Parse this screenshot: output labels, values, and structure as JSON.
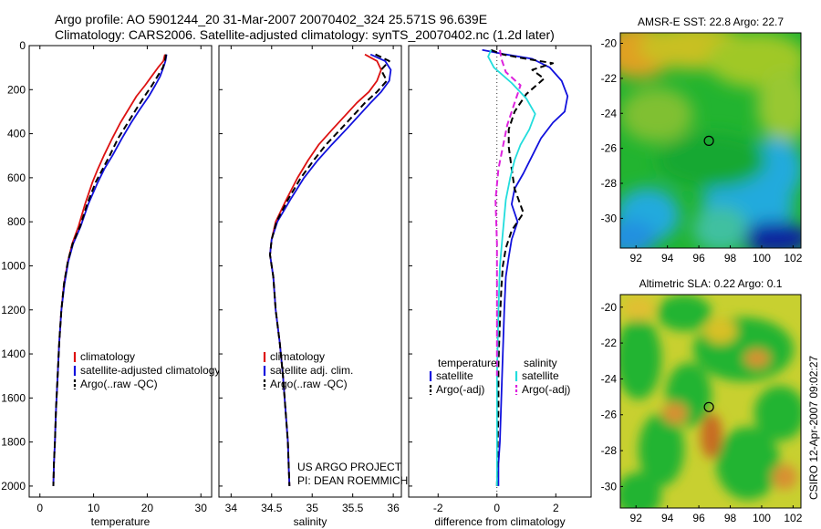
{
  "header": {
    "line1": "Argo profile: AO 5901244_20 31-Mar-2007 20070402_324 25.571S 96.639E",
    "line2": "Climatology: CARS2006. Satellite-adjusted climatology: synTS_20070402.nc (1.2d later)"
  },
  "side_label": "CSIRO 12-Apr-2007 09:02:27",
  "colors": {
    "climatology": "#dd1111",
    "satellite": "#1111dd",
    "argo": "#000000",
    "sal_satellite": "#22dddd",
    "sal_argo": "#dd22dd",
    "map_warm": "#d4b020",
    "map_mid": "#22b430",
    "map_cool": "#22aadd",
    "map_cold": "#1020a0"
  },
  "chart_data": [
    {
      "type": "line",
      "xlabel": "temperature",
      "ylabel": "",
      "xlim": [
        -2,
        32
      ],
      "ylim": [
        2050,
        0
      ],
      "xticks": [
        0,
        10,
        20,
        30
      ],
      "yticks": [
        0,
        200,
        400,
        600,
        800,
        1000,
        1200,
        1400,
        1600,
        1800,
        2000
      ],
      "legend": {
        "placement": "lower-right",
        "entries": [
          "climatology",
          "satellite-adjusted climatology",
          "Argo(..raw -QC)"
        ]
      },
      "series": [
        {
          "name": "climatology",
          "color": "#dd1111",
          "dash": "solid",
          "x": [
            23.3,
            23.0,
            22.0,
            20.8,
            19.6,
            18.0,
            16.5,
            15.0,
            13.5,
            11.9,
            10.8,
            9.8,
            8.4,
            7.2,
            6.0,
            5.2,
            4.5,
            4.0,
            3.6,
            3.3,
            3.0,
            2.8,
            2.6,
            2.5
          ],
          "y": [
            40,
            70,
            100,
            140,
            180,
            230,
            290,
            350,
            420,
            500,
            560,
            620,
            720,
            820,
            900,
            980,
            1080,
            1200,
            1350,
            1500,
            1650,
            1800,
            1900,
            2000
          ]
        },
        {
          "name": "satellite-adjusted climatology",
          "color": "#1111dd",
          "dash": "solid",
          "x": [
            23.6,
            23.4,
            23.0,
            22.4,
            21.5,
            20.3,
            18.6,
            17.0,
            15.3,
            13.5,
            12.0,
            10.8,
            9.0,
            7.6,
            6.2,
            5.3,
            4.6,
            4.0,
            3.6,
            3.3,
            3.0,
            2.8,
            2.6,
            2.5
          ],
          "y": [
            40,
            70,
            100,
            140,
            180,
            230,
            290,
            350,
            420,
            500,
            560,
            620,
            720,
            820,
            900,
            980,
            1080,
            1200,
            1350,
            1500,
            1650,
            1800,
            1900,
            2000
          ]
        },
        {
          "name": "Argo(..raw -QC)",
          "color": "#000000",
          "dash": "dashed",
          "x": [
            23.5,
            23.3,
            22.9,
            21.9,
            20.9,
            19.5,
            17.9,
            16.4,
            14.6,
            13.0,
            11.7,
            10.4,
            8.8,
            7.5,
            6.1,
            5.2,
            4.5,
            4.0,
            3.6,
            3.3,
            3.0,
            2.8,
            2.6,
            2.5
          ],
          "y": [
            40,
            70,
            100,
            140,
            180,
            230,
            290,
            350,
            420,
            500,
            560,
            620,
            720,
            820,
            900,
            980,
            1080,
            1200,
            1350,
            1500,
            1650,
            1800,
            1900,
            2000
          ]
        }
      ]
    },
    {
      "type": "line",
      "xlabel": "salinity",
      "xlim": [
        33.85,
        36.1
      ],
      "ylim": [
        2050,
        0
      ],
      "xticks": [
        34,
        34.5,
        35,
        35.5,
        36
      ],
      "legend": {
        "placement": "lower-right",
        "entries": [
          "climatology",
          "satellite adj. clim.",
          "Argo(..raw -QC)"
        ]
      },
      "annotations": [
        "US ARGO PROJECT",
        "PI: DEAN ROEMMICH"
      ],
      "series": [
        {
          "name": "climatology",
          "color": "#dd1111",
          "dash": "solid",
          "x": [
            35.65,
            35.8,
            35.85,
            35.8,
            35.7,
            35.55,
            35.4,
            35.25,
            35.08,
            34.95,
            34.82,
            34.68,
            34.55,
            34.5,
            34.48,
            34.52,
            34.55,
            34.6,
            34.64,
            34.67,
            34.7,
            34.71,
            34.72
          ],
          "y": [
            40,
            70,
            110,
            160,
            210,
            260,
            320,
            380,
            450,
            520,
            600,
            700,
            800,
            880,
            950,
            1050,
            1200,
            1350,
            1500,
            1650,
            1800,
            1900,
            2000
          ]
        },
        {
          "name": "satellite adj. clim.",
          "color": "#1111dd",
          "dash": "solid",
          "x": [
            35.72,
            35.9,
            35.97,
            35.95,
            35.85,
            35.72,
            35.57,
            35.42,
            35.24,
            35.07,
            34.9,
            34.73,
            34.57,
            34.5,
            34.48,
            34.52,
            34.55,
            34.6,
            34.64,
            34.67,
            34.7,
            34.71,
            34.72
          ],
          "y": [
            40,
            70,
            110,
            160,
            210,
            260,
            320,
            380,
            450,
            520,
            600,
            700,
            800,
            880,
            950,
            1050,
            1200,
            1350,
            1500,
            1650,
            1800,
            1900,
            2000
          ]
        },
        {
          "name": "Argo(..raw -QC)",
          "color": "#000000",
          "dash": "dashed",
          "x": [
            35.78,
            35.95,
            35.85,
            35.92,
            35.8,
            35.65,
            35.5,
            35.35,
            35.17,
            35.02,
            34.86,
            34.7,
            34.56,
            34.5,
            34.48,
            34.52,
            34.55,
            34.6,
            34.64,
            34.67,
            34.7,
            34.71,
            34.72
          ],
          "y": [
            40,
            70,
            110,
            160,
            210,
            260,
            320,
            380,
            450,
            520,
            600,
            700,
            800,
            880,
            950,
            1050,
            1200,
            1350,
            1500,
            1650,
            1800,
            1900,
            2000
          ]
        }
      ]
    },
    {
      "type": "line",
      "xlabel": "difference from climatology",
      "xlim": [
        -3,
        3.2
      ],
      "ylim": [
        2050,
        0
      ],
      "xticks": [
        -2,
        0,
        2
      ],
      "legend": {
        "placement": "lower-center",
        "groups": [
          "temperature",
          "salinity"
        ],
        "entries": [
          "satellite",
          "Argo(-adj)",
          "satellite",
          "Argo(-adj)"
        ]
      },
      "series": [
        {
          "name": "temperature satellite",
          "color": "#1111dd",
          "dash": "solid",
          "x": [
            -0.5,
            0.3,
            1.2,
            1.8,
            2.2,
            2.4,
            2.3,
            1.9,
            1.5,
            1.2,
            0.9,
            0.6,
            0.5,
            0.7,
            0.5,
            0.4,
            0.3,
            0.25,
            0.2,
            0.15,
            0.1,
            0.05,
            0.05
          ],
          "y": [
            20,
            40,
            60,
            100,
            160,
            230,
            300,
            350,
            420,
            500,
            580,
            650,
            720,
            800,
            880,
            960,
            1050,
            1200,
            1400,
            1600,
            1800,
            1900,
            2000
          ]
        },
        {
          "name": "temperature Argo(-adj)",
          "color": "#000000",
          "dash": "dashed",
          "x": [
            -0.2,
            0.2,
            1.0,
            1.9,
            1.2,
            1.6,
            1.0,
            0.6,
            0.4,
            0.4,
            0.5,
            0.6,
            0.9,
            0.5,
            0.3,
            0.2,
            0.15,
            0.1,
            0.05,
            0.05,
            0.02,
            0.0
          ],
          "y": [
            20,
            40,
            60,
            80,
            110,
            150,
            220,
            300,
            380,
            460,
            560,
            650,
            760,
            840,
            920,
            1000,
            1100,
            1250,
            1450,
            1650,
            1850,
            2000
          ]
        },
        {
          "name": "salinity satellite",
          "color": "#22dddd",
          "dash": "solid",
          "x": [
            -0.2,
            -0.3,
            -0.1,
            0.5,
            1.0,
            1.3,
            1.1,
            0.8,
            0.6,
            0.45,
            0.3,
            0.2,
            0.1,
            0.05,
            0.0,
            0.0,
            0.0
          ],
          "y": [
            20,
            50,
            100,
            170,
            240,
            310,
            380,
            450,
            520,
            600,
            700,
            850,
            1000,
            1200,
            1500,
            1800,
            2000
          ]
        },
        {
          "name": "salinity Argo(-adj)",
          "color": "#dd22dd",
          "dash": "dashed",
          "x": [
            0.1,
            0.15,
            0.3,
            0.8,
            0.6,
            0.35,
            0.2,
            0.05,
            -0.05,
            0.0,
            0.0,
            0.0
          ],
          "y": [
            20,
            60,
            120,
            180,
            260,
            360,
            460,
            560,
            700,
            900,
            1200,
            1500
          ]
        }
      ]
    },
    {
      "type": "heatmap",
      "title": "AMSR-E SST: 22.8 Argo: 22.7",
      "xlim": [
        91,
        102.5
      ],
      "ylim": [
        -31.7,
        -19.4
      ],
      "xticks": [
        92,
        94,
        96,
        98,
        100,
        102
      ],
      "yticks": [
        -20,
        -22,
        -24,
        -26,
        -28,
        -30
      ],
      "marker": {
        "x": 96.64,
        "y": -25.57
      }
    },
    {
      "type": "heatmap",
      "title": "Altimetric SLA: 0.22 Argo: 0.1",
      "xlim": [
        91,
        102.5
      ],
      "ylim": [
        -31.2,
        -19.3
      ],
      "xticks": [
        92,
        94,
        96,
        98,
        100,
        102
      ],
      "yticks": [
        -20,
        -22,
        -24,
        -26,
        -28,
        -30
      ],
      "marker": {
        "x": 96.64,
        "y": -25.57
      }
    }
  ]
}
